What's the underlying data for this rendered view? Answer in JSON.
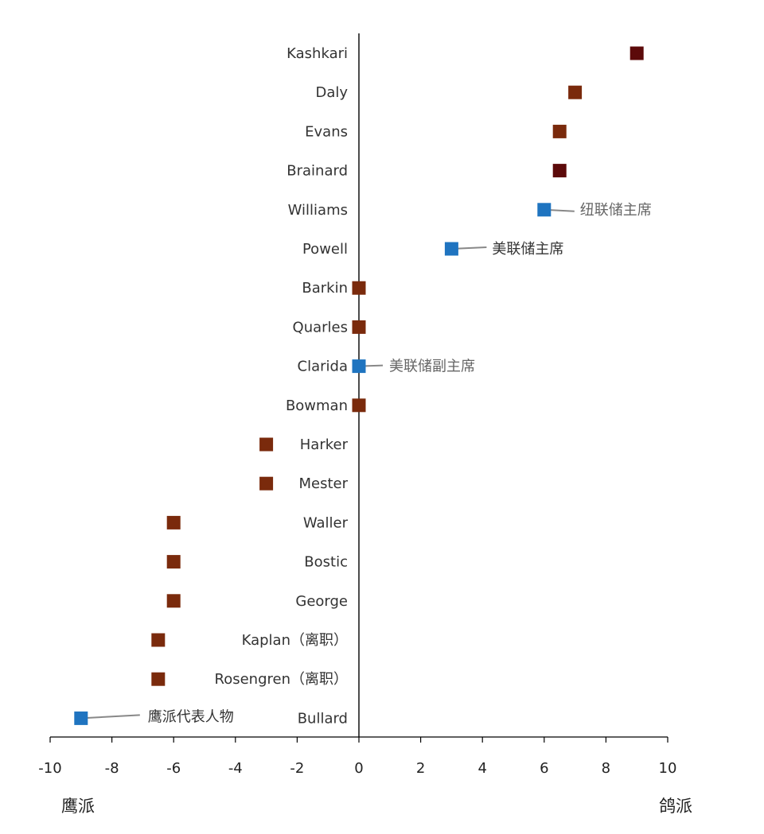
{
  "chart_data": {
    "type": "scatter",
    "xlim": [
      -10,
      10
    ],
    "x_ticks": [
      "-10",
      "-8",
      "-6",
      "-4",
      "-2",
      "0",
      "2",
      "4",
      "6",
      "8",
      "10"
    ],
    "x_tick_values": [
      -10,
      -8,
      -6,
      -4,
      -2,
      0,
      2,
      4,
      6,
      8,
      10
    ],
    "left_end_label": "鹰派",
    "right_end_label": "鸽派",
    "grid": false,
    "colors": {
      "default": "#7a2a0c",
      "dark": "#5c0a0a",
      "highlight": "#1f74c0",
      "axis": "#000000",
      "leader": "#888888"
    },
    "points": [
      {
        "name": "Kashkari",
        "x": 9,
        "color": "dark"
      },
      {
        "name": "Daly",
        "x": 7,
        "color": "default"
      },
      {
        "name": "Evans",
        "x": 6.5,
        "color": "default"
      },
      {
        "name": "Brainard",
        "x": 6.5,
        "color": "dark"
      },
      {
        "name": "Williams",
        "x": 6,
        "color": "highlight",
        "annotation": "纽联储主席"
      },
      {
        "name": "Powell",
        "x": 3,
        "color": "highlight",
        "annotation": "美联储主席"
      },
      {
        "name": "Barkin",
        "x": 0,
        "color": "default"
      },
      {
        "name": "Quarles",
        "x": 0,
        "color": "default"
      },
      {
        "name": "Clarida",
        "x": 0,
        "color": "highlight",
        "annotation": "美联储副主席"
      },
      {
        "name": "Bowman",
        "x": 0,
        "color": "default"
      },
      {
        "name": "Harker",
        "x": -3,
        "color": "default"
      },
      {
        "name": "Mester",
        "x": -3,
        "color": "default"
      },
      {
        "name": "Waller",
        "x": -6,
        "color": "default"
      },
      {
        "name": "Bostic",
        "x": -6,
        "color": "default"
      },
      {
        "name": "George",
        "x": -6,
        "color": "default"
      },
      {
        "name": "Kaplan（离职）",
        "x": -6.5,
        "color": "default"
      },
      {
        "name": "Rosengren（离职）",
        "x": -6.5,
        "color": "default"
      },
      {
        "name": "Bullard",
        "x": -9,
        "color": "highlight",
        "annotation": "鹰派代表人物"
      }
    ]
  }
}
